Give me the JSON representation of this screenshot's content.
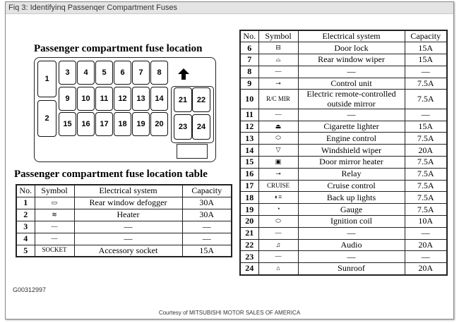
{
  "window_title": "Fiq 3: Identifyinq Passenqer Compartment Fuses",
  "diagram_title": "Passenger compartment fuse location",
  "fuse_numbers": [
    "1",
    "2",
    "3",
    "4",
    "5",
    "6",
    "7",
    "8",
    "9",
    "10",
    "11",
    "12",
    "13",
    "14",
    "15",
    "16",
    "17",
    "18",
    "19",
    "20",
    "21",
    "22",
    "23",
    "24"
  ],
  "table_title": "Passenger compartment fuse location table",
  "headers": {
    "no": "No.",
    "symbol": "Symbol",
    "system": "Electrical system",
    "capacity": "Capacity"
  },
  "left_rows": [
    {
      "no": "1",
      "symbol": "▭",
      "icon": "rear-defogger-icon",
      "system": "Rear window defogger",
      "capacity": "30A"
    },
    {
      "no": "2",
      "symbol": "≋",
      "icon": "heater-icon",
      "system": "Heater",
      "capacity": "30A"
    },
    {
      "no": "3",
      "symbol": "—",
      "system": "—",
      "capacity": "—"
    },
    {
      "no": "4",
      "symbol": "—",
      "system": "—",
      "capacity": "—"
    },
    {
      "no": "5",
      "symbol": "SOCKET",
      "system": "Accessory socket",
      "capacity": "15A"
    }
  ],
  "right_rows": [
    {
      "no": "6",
      "symbol": "⊟",
      "icon": "door-lock-icon",
      "system": "Door lock",
      "capacity": "15A"
    },
    {
      "no": "7",
      "symbol": "⌓",
      "icon": "rear-wiper-icon",
      "system": "Rear window wiper",
      "capacity": "15A"
    },
    {
      "no": "8",
      "symbol": "—",
      "system": "—",
      "capacity": "—"
    },
    {
      "no": "9",
      "symbol": "⊸",
      "icon": "control-unit-icon",
      "system": "Control unit",
      "capacity": "7.5A"
    },
    {
      "no": "10",
      "symbol": "R/C MIR",
      "system": "Electric remote-controlled outside mirror",
      "capacity": "7.5A"
    },
    {
      "no": "11",
      "symbol": "—",
      "system": "—",
      "capacity": "—"
    },
    {
      "no": "12",
      "symbol": "⏏",
      "icon": "cigarette-lighter-icon",
      "system": "Cigarette lighter",
      "capacity": "15A"
    },
    {
      "no": "13",
      "symbol": "⬭",
      "icon": "engine-icon",
      "system": "Engine control",
      "capacity": "7.5A"
    },
    {
      "no": "14",
      "symbol": "▽",
      "icon": "windshield-wiper-icon",
      "system": "Windshield wiper",
      "capacity": "20A"
    },
    {
      "no": "15",
      "symbol": "▣",
      "icon": "mirror-heater-icon",
      "system": "Door mirror heater",
      "capacity": "7.5A"
    },
    {
      "no": "16",
      "symbol": "⊸",
      "icon": "relay-icon",
      "system": "Relay",
      "capacity": "7.5A"
    },
    {
      "no": "17",
      "symbol": "CRUISE",
      "system": "Cruise control",
      "capacity": "7.5A"
    },
    {
      "no": "18",
      "symbol": "◐≡",
      "icon": "backup-light-icon",
      "system": "Back up lights",
      "capacity": "7.5A"
    },
    {
      "no": "19",
      "symbol": "◔",
      "icon": "gauge-icon",
      "system": "Gauge",
      "capacity": "7.5A"
    },
    {
      "no": "20",
      "symbol": "⬭",
      "icon": "ignition-coil-icon",
      "system": "Ignition coil",
      "capacity": "10A"
    },
    {
      "no": "21",
      "symbol": "—",
      "system": "—",
      "capacity": "—"
    },
    {
      "no": "22",
      "symbol": "♫",
      "icon": "audio-icon",
      "system": "Audio",
      "capacity": "20A"
    },
    {
      "no": "23",
      "symbol": "—",
      "system": "—",
      "capacity": "—"
    },
    {
      "no": "24",
      "symbol": "⌂",
      "icon": "sunroof-icon",
      "system": "Sunroof",
      "capacity": "20A"
    }
  ],
  "figure_code": "G00312997",
  "courtesy": "Courtesy of MITSUBISHI MOTOR SALES OF AMERICA"
}
